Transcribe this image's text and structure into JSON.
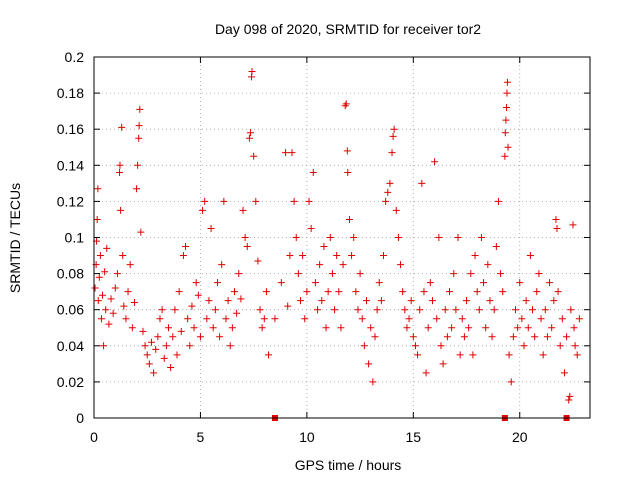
{
  "chart_data": {
    "type": "scatter",
    "title": "Day 098 of 2020, SRMTID for receiver tor2",
    "xlabel": "GPS time / hours",
    "ylabel": "SRMTID / TECUs",
    "xlim": [
      0,
      23.3
    ],
    "ylim": [
      0,
      0.2
    ],
    "grid": true,
    "marker": "+",
    "color": "#e00000",
    "x_ticks": [
      0,
      5,
      10,
      15,
      20
    ],
    "x_tick_labels": [
      "0",
      "5",
      "10",
      "15",
      "20"
    ],
    "y_ticks": [
      0,
      0.02,
      0.04,
      0.06,
      0.08,
      0.1,
      0.12,
      0.14,
      0.16,
      0.18,
      0.2
    ],
    "y_tick_labels": [
      "0",
      "0.02",
      "0.04",
      "0.06",
      "0.08",
      "0.1",
      "0.12",
      "0.14",
      "0.16",
      "0.18",
      "0.2"
    ],
    "series": [
      {
        "points": [
          [
            0.05,
            0.072
          ],
          [
            0.1,
            0.085
          ],
          [
            0.12,
            0.098
          ],
          [
            0.15,
            0.11
          ],
          [
            0.18,
            0.127
          ],
          [
            0.2,
            0.065
          ],
          [
            0.25,
            0.078
          ],
          [
            0.3,
            0.09
          ],
          [
            0.35,
            0.055
          ],
          [
            0.4,
            0.068
          ],
          [
            0.45,
            0.04
          ],
          [
            0.5,
            0.081
          ],
          [
            0.55,
            0.06
          ],
          [
            0.6,
            0.094
          ],
          [
            0.7,
            0.052
          ],
          [
            0.8,
            0.066
          ],
          [
            0.9,
            0.058
          ],
          [
            1.0,
            0.072
          ],
          [
            1.1,
            0.08
          ],
          [
            1.2,
            0.136
          ],
          [
            1.22,
            0.14
          ],
          [
            1.25,
            0.115
          ],
          [
            1.3,
            0.161
          ],
          [
            1.35,
            0.09
          ],
          [
            1.4,
            0.062
          ],
          [
            1.5,
            0.055
          ],
          [
            1.6,
            0.07
          ],
          [
            1.7,
            0.085
          ],
          [
            1.8,
            0.05
          ],
          [
            1.9,
            0.064
          ],
          [
            2.0,
            0.127
          ],
          [
            2.05,
            0.14
          ],
          [
            2.1,
            0.155
          ],
          [
            2.12,
            0.162
          ],
          [
            2.15,
            0.171
          ],
          [
            2.2,
            0.103
          ],
          [
            2.3,
            0.048
          ],
          [
            2.4,
            0.04
          ],
          [
            2.5,
            0.035
          ],
          [
            2.6,
            0.03
          ],
          [
            2.7,
            0.042
          ],
          [
            2.8,
            0.025
          ],
          [
            2.9,
            0.038
          ],
          [
            3.0,
            0.045
          ],
          [
            3.1,
            0.055
          ],
          [
            3.2,
            0.06
          ],
          [
            3.3,
            0.033
          ],
          [
            3.4,
            0.04
          ],
          [
            3.5,
            0.05
          ],
          [
            3.6,
            0.028
          ],
          [
            3.7,
            0.045
          ],
          [
            3.8,
            0.06
          ],
          [
            3.9,
            0.035
          ],
          [
            4.0,
            0.07
          ],
          [
            4.1,
            0.048
          ],
          [
            4.2,
            0.09
          ],
          [
            4.3,
            0.095
          ],
          [
            4.4,
            0.055
          ],
          [
            4.5,
            0.04
          ],
          [
            4.6,
            0.062
          ],
          [
            4.7,
            0.05
          ],
          [
            4.8,
            0.075
          ],
          [
            4.9,
            0.068
          ],
          [
            5.0,
            0.045
          ],
          [
            5.1,
            0.115
          ],
          [
            5.2,
            0.12
          ],
          [
            5.3,
            0.055
          ],
          [
            5.4,
            0.065
          ],
          [
            5.5,
            0.105
          ],
          [
            5.6,
            0.05
          ],
          [
            5.7,
            0.06
          ],
          [
            5.8,
            0.075
          ],
          [
            5.9,
            0.045
          ],
          [
            6.0,
            0.085
          ],
          [
            6.1,
            0.12
          ],
          [
            6.2,
            0.055
          ],
          [
            6.3,
            0.065
          ],
          [
            6.4,
            0.04
          ],
          [
            6.5,
            0.05
          ],
          [
            6.6,
            0.07
          ],
          [
            6.7,
            0.058
          ],
          [
            6.8,
            0.08
          ],
          [
            6.9,
            0.066
          ],
          [
            7.0,
            0.115
          ],
          [
            7.1,
            0.1
          ],
          [
            7.2,
            0.095
          ],
          [
            7.3,
            0.155
          ],
          [
            7.35,
            0.158
          ],
          [
            7.4,
            0.189
          ],
          [
            7.42,
            0.192
          ],
          [
            7.5,
            0.145
          ],
          [
            7.6,
            0.12
          ],
          [
            7.7,
            0.087
          ],
          [
            7.8,
            0.06
          ],
          [
            7.9,
            0.05
          ],
          [
            8.0,
            0.055
          ],
          [
            8.1,
            0.07
          ],
          [
            8.2,
            0.035
          ],
          [
            8.5,
            0.055
          ],
          [
            8.8,
            0.075
          ],
          [
            9.0,
            0.147
          ],
          [
            9.1,
            0.062
          ],
          [
            9.2,
            0.09
          ],
          [
            9.3,
            0.147
          ],
          [
            9.4,
            0.12
          ],
          [
            9.5,
            0.1
          ],
          [
            9.6,
            0.08
          ],
          [
            9.7,
            0.065
          ],
          [
            9.8,
            0.09
          ],
          [
            9.9,
            0.055
          ],
          [
            10.0,
            0.07
          ],
          [
            10.1,
            0.12
          ],
          [
            10.2,
            0.105
          ],
          [
            10.3,
            0.136
          ],
          [
            10.4,
            0.075
          ],
          [
            10.5,
            0.06
          ],
          [
            10.6,
            0.085
          ],
          [
            10.7,
            0.065
          ],
          [
            10.8,
            0.095
          ],
          [
            10.9,
            0.05
          ],
          [
            11.0,
            0.07
          ],
          [
            11.1,
            0.1
          ],
          [
            11.2,
            0.08
          ],
          [
            11.3,
            0.06
          ],
          [
            11.4,
            0.09
          ],
          [
            11.5,
            0.07
          ],
          [
            11.6,
            0.05
          ],
          [
            11.7,
            0.085
          ],
          [
            11.8,
            0.173
          ],
          [
            11.85,
            0.174
          ],
          [
            11.9,
            0.148
          ],
          [
            11.92,
            0.136
          ],
          [
            12.0,
            0.11
          ],
          [
            12.1,
            0.09
          ],
          [
            12.2,
            0.1
          ],
          [
            12.3,
            0.07
          ],
          [
            12.4,
            0.06
          ],
          [
            12.5,
            0.08
          ],
          [
            12.6,
            0.055
          ],
          [
            12.7,
            0.04
          ],
          [
            12.8,
            0.065
          ],
          [
            12.9,
            0.03
          ],
          [
            13.0,
            0.05
          ],
          [
            13.1,
            0.02
          ],
          [
            13.2,
            0.045
          ],
          [
            13.3,
            0.06
          ],
          [
            13.4,
            0.075
          ],
          [
            13.5,
            0.065
          ],
          [
            13.6,
            0.09
          ],
          [
            13.7,
            0.12
          ],
          [
            13.8,
            0.125
          ],
          [
            13.9,
            0.13
          ],
          [
            14.0,
            0.147
          ],
          [
            14.05,
            0.156
          ],
          [
            14.1,
            0.16
          ],
          [
            14.2,
            0.115
          ],
          [
            14.3,
            0.1
          ],
          [
            14.4,
            0.085
          ],
          [
            14.5,
            0.07
          ],
          [
            14.6,
            0.06
          ],
          [
            14.7,
            0.05
          ],
          [
            14.8,
            0.055
          ],
          [
            14.9,
            0.065
          ],
          [
            15.0,
            0.045
          ],
          [
            15.1,
            0.04
          ],
          [
            15.2,
            0.035
          ],
          [
            15.3,
            0.06
          ],
          [
            15.4,
            0.13
          ],
          [
            15.5,
            0.07
          ],
          [
            15.6,
            0.025
          ],
          [
            15.7,
            0.05
          ],
          [
            15.8,
            0.075
          ],
          [
            15.9,
            0.065
          ],
          [
            16.0,
            0.142
          ],
          [
            16.1,
            0.055
          ],
          [
            16.2,
            0.1
          ],
          [
            16.3,
            0.04
          ],
          [
            16.4,
            0.03
          ],
          [
            16.5,
            0.06
          ],
          [
            16.6,
            0.045
          ],
          [
            16.7,
            0.07
          ],
          [
            16.8,
            0.05
          ],
          [
            16.9,
            0.08
          ],
          [
            17.0,
            0.06
          ],
          [
            17.1,
            0.1
          ],
          [
            17.2,
            0.035
          ],
          [
            17.3,
            0.055
          ],
          [
            17.4,
            0.045
          ],
          [
            17.5,
            0.065
          ],
          [
            17.6,
            0.05
          ],
          [
            17.7,
            0.08
          ],
          [
            17.8,
            0.035
          ],
          [
            17.9,
            0.09
          ],
          [
            18.0,
            0.07
          ],
          [
            18.1,
            0.06
          ],
          [
            18.2,
            0.1
          ],
          [
            18.3,
            0.075
          ],
          [
            18.4,
            0.05
          ],
          [
            18.5,
            0.085
          ],
          [
            18.6,
            0.065
          ],
          [
            18.7,
            0.045
          ],
          [
            18.8,
            0.06
          ],
          [
            18.9,
            0.095
          ],
          [
            19.0,
            0.12
          ],
          [
            19.1,
            0.08
          ],
          [
            19.2,
            0.07
          ],
          [
            19.3,
            0.145
          ],
          [
            19.32,
            0.158
          ],
          [
            19.35,
            0.165
          ],
          [
            19.38,
            0.172
          ],
          [
            19.4,
            0.18
          ],
          [
            19.42,
            0.186
          ],
          [
            19.45,
            0.15
          ],
          [
            19.5,
            0.035
          ],
          [
            19.6,
            0.02
          ],
          [
            19.7,
            0.045
          ],
          [
            19.8,
            0.06
          ],
          [
            19.9,
            0.05
          ],
          [
            20.0,
            0.075
          ],
          [
            20.1,
            0.055
          ],
          [
            20.2,
            0.04
          ],
          [
            20.3,
            0.065
          ],
          [
            20.4,
            0.05
          ],
          [
            20.5,
            0.09
          ],
          [
            20.6,
            0.06
          ],
          [
            20.7,
            0.045
          ],
          [
            20.8,
            0.07
          ],
          [
            20.9,
            0.08
          ],
          [
            21.0,
            0.055
          ],
          [
            21.1,
            0.035
          ],
          [
            21.2,
            0.06
          ],
          [
            21.3,
            0.045
          ],
          [
            21.4,
            0.075
          ],
          [
            21.5,
            0.05
          ],
          [
            21.6,
            0.065
          ],
          [
            21.7,
            0.11
          ],
          [
            21.75,
            0.105
          ],
          [
            21.8,
            0.07
          ],
          [
            21.9,
            0.04
          ],
          [
            22.0,
            0.055
          ],
          [
            22.1,
            0.025
          ],
          [
            22.2,
            0.045
          ],
          [
            22.3,
            0.01
          ],
          [
            22.35,
            0.012
          ],
          [
            22.4,
            0.06
          ],
          [
            22.5,
            0.107
          ],
          [
            22.55,
            0.05
          ],
          [
            22.6,
            0.04
          ],
          [
            22.7,
            0.035
          ],
          [
            22.8,
            0.055
          ]
        ]
      }
    ],
    "zero_markers": [
      8.5,
      19.3,
      22.2
    ]
  }
}
